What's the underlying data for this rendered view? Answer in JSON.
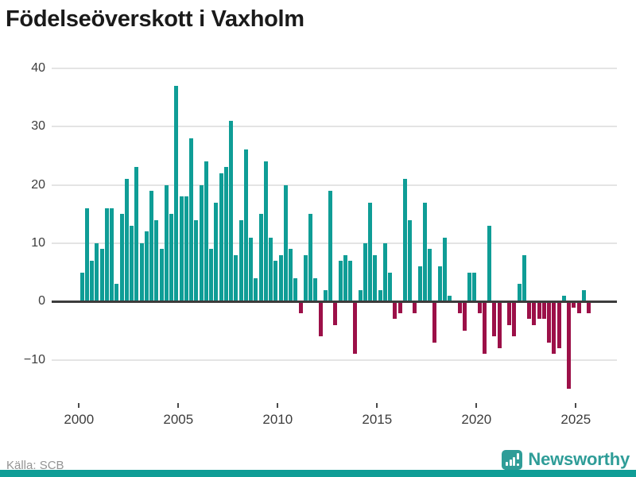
{
  "title": "Födelseöverskott i Vaxholm",
  "footer": {
    "source": "Källa: SCB",
    "brand": "Newsworthy",
    "brand_icon": "bar-chart-pin-icon"
  },
  "colors": {
    "positive_bar": "#0f9d96",
    "negative_bar": "#9c1048",
    "axis": "#3c3c3c",
    "grid": "#e4e4e4",
    "title_text": "#1a1a1a",
    "tick_text": "#3d3d3d",
    "source_text": "#949494",
    "brand_teal": "#2f9d98",
    "bottom_strip": "#0f9d96"
  },
  "chart_data": {
    "type": "bar",
    "title": "Födelseöverskott i Vaxholm",
    "frequency": "quarterly",
    "period_start": "2000Q1",
    "period_end": "2025Q3",
    "xlabel": "",
    "ylabel": "",
    "ylim": [
      -17,
      42
    ],
    "grid": "horizontal",
    "legend": "none",
    "y_ticks": [
      40,
      30,
      20,
      10,
      0,
      -10
    ],
    "y_tick_labels": [
      "40",
      "30",
      "20",
      "10",
      "0",
      "−10"
    ],
    "x_tick_labels": [
      "2000",
      "2005",
      "2010",
      "2015",
      "2020",
      "2025"
    ],
    "values": [
      5,
      16,
      7,
      10,
      9,
      16,
      16,
      3,
      15,
      21,
      13,
      23,
      10,
      12,
      19,
      14,
      9,
      20,
      15,
      37,
      18,
      18,
      28,
      14,
      20,
      24,
      9,
      17,
      22,
      23,
      31,
      8,
      14,
      26,
      11,
      4,
      15,
      24,
      11,
      7,
      8,
      20,
      9,
      4,
      -2,
      8,
      15,
      4,
      -6,
      2,
      19,
      -4,
      7,
      8,
      7,
      -9,
      2,
      10,
      17,
      8,
      2,
      10,
      5,
      -3,
      -2,
      21,
      14,
      -2,
      6,
      17,
      9,
      -7,
      6,
      11,
      1,
      0,
      -2,
      -5,
      5,
      5,
      -2,
      -9,
      13,
      -6,
      -8,
      0,
      -4,
      -6,
      3,
      8,
      -3,
      -4,
      -3,
      -3,
      -7,
      -9,
      -8,
      1,
      -15,
      -1,
      -2,
      2,
      -2
    ]
  }
}
